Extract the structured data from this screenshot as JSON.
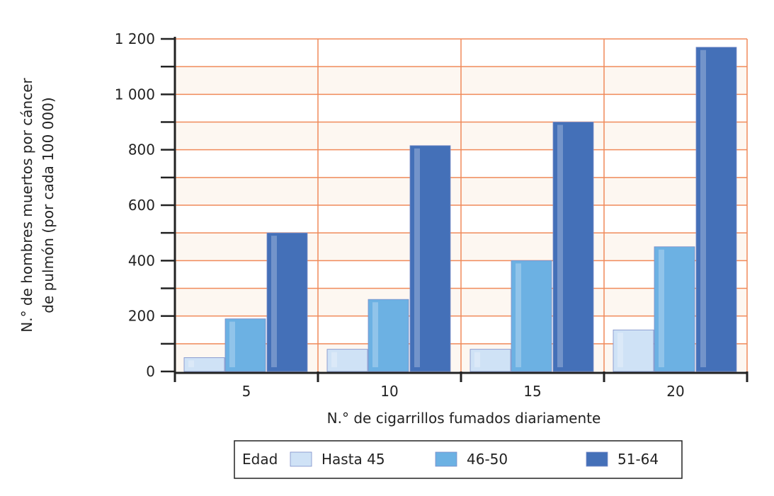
{
  "chart_data": {
    "type": "bar",
    "title": "",
    "xlabel": "N.° de cigarrillos fumados diariamente",
    "ylabel_lines": [
      "N.° de hombres muertos por cáncer",
      "de pulmón (por cada 100 000)"
    ],
    "categories": [
      "5",
      "10",
      "15",
      "20"
    ],
    "ylim": [
      0,
      1200
    ],
    "yticks": [
      0,
      200,
      400,
      600,
      800,
      1000,
      1200
    ],
    "ytick_labels": [
      "0",
      "200",
      "400",
      "600",
      "800",
      "1 000",
      "1 200"
    ],
    "minor_step": 100,
    "grid": true,
    "legend": {
      "title": "Edad",
      "placement": "bottom"
    },
    "series": [
      {
        "name": "Hasta 45",
        "color": "#cfe2f6",
        "values": [
          50,
          80,
          80,
          150
        ]
      },
      {
        "name": "46-50",
        "color": "#6cb1e3",
        "values": [
          190,
          260,
          400,
          450
        ]
      },
      {
        "name": "51-64",
        "color": "#4470b8",
        "values": [
          500,
          815,
          900,
          1170
        ]
      }
    ],
    "colors": {
      "grid": "#f08a5a",
      "band": "#fdf7f1",
      "axis": "#222222"
    }
  }
}
